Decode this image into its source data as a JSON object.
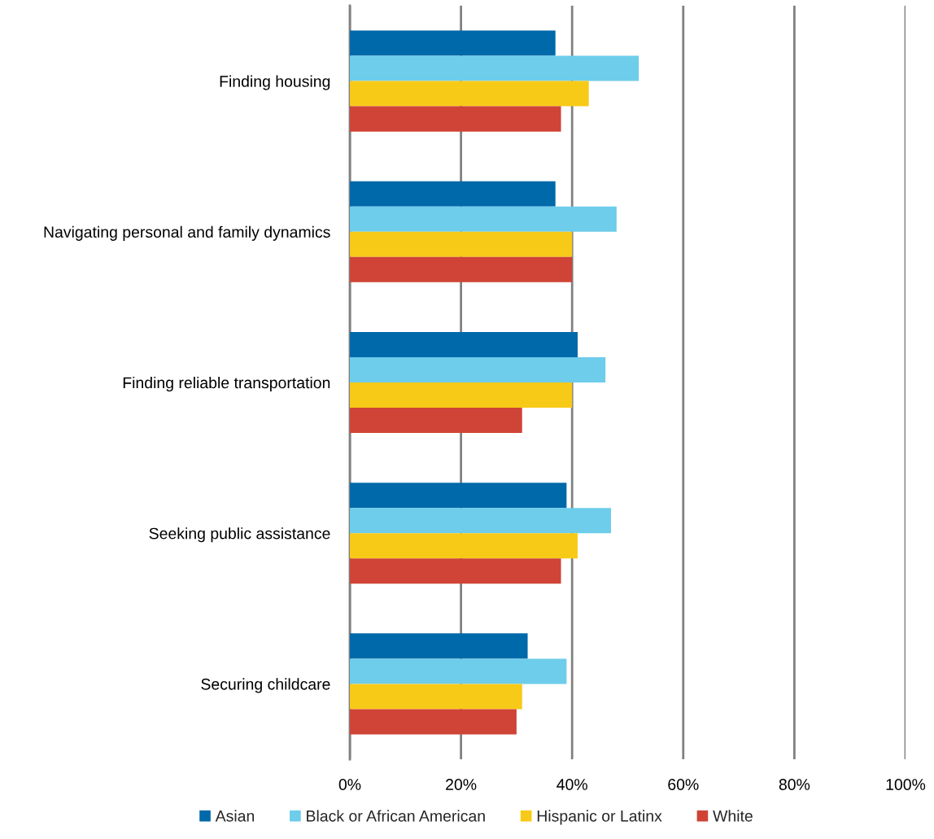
{
  "chart_data": {
    "type": "bar",
    "orientation": "horizontal",
    "categories": [
      "Finding housing",
      "Navigating personal and family dynamics",
      "Finding reliable transportation",
      "Seeking public assistance",
      "Securing childcare"
    ],
    "series": [
      {
        "name": "Asian",
        "color": "#0069aa",
        "values": [
          37,
          37,
          41,
          39,
          32
        ]
      },
      {
        "name": "Black or African American",
        "color": "#6dcdea",
        "values": [
          52,
          48,
          46,
          47,
          39
        ]
      },
      {
        "name": "Hispanic or Latinx",
        "color": "#f7ca18",
        "values": [
          43,
          40,
          40,
          41,
          31
        ]
      },
      {
        "name": "White",
        "color": "#cf4436",
        "values": [
          38,
          40,
          31,
          38,
          30
        ]
      }
    ],
    "xlim": [
      0,
      100
    ],
    "xticks": [
      {
        "value": 0,
        "label": "0%"
      },
      {
        "value": 20,
        "label": "20%"
      },
      {
        "value": 40,
        "label": "40%"
      },
      {
        "value": 60,
        "label": "60%"
      },
      {
        "value": 80,
        "label": "80%"
      },
      {
        "value": 100,
        "label": "100%"
      }
    ],
    "grid": "x",
    "legend": "bottom"
  }
}
